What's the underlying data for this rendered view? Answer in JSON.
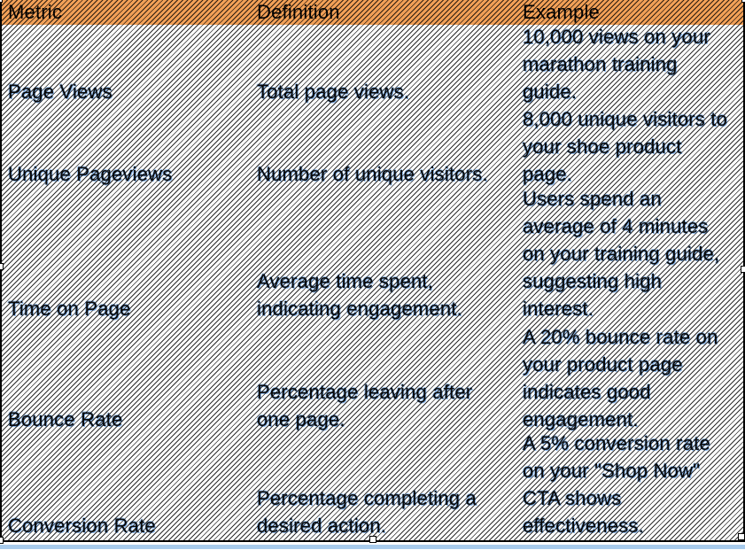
{
  "table": {
    "header": {
      "cols": [
        "Metric",
        "Definition",
        "Example"
      ]
    },
    "rows": [
      {
        "metric": "Page Views",
        "definition": "Total page views.",
        "example": "10,000 views on your\nmarathon training\nguide."
      },
      {
        "metric": "Unique Pageviews",
        "definition": "Number of unique visitors.",
        "example": "8,000 unique visitors to\nyour shoe product\npage."
      },
      {
        "metric": "Time on Page",
        "definition": "Average time spent,\nindicating engagement.",
        "example": "Users spend an\naverage of 4 minutes\non your training guide,\nsuggesting high\ninterest."
      },
      {
        "metric": "Bounce Rate",
        "definition": "Percentage leaving after\none page.",
        "example": "A 20% bounce rate on\nyour product page\nindicates good\nengagement."
      },
      {
        "metric": "Conversion Rate",
        "definition": "Percentage completing a\ndesired action.",
        "example": "A 5% conversion rate\non your \"Shop Now\"\nCTA shows\neffectiveness."
      }
    ]
  },
  "colors": {
    "header_bg": "#F2A057",
    "hatch_line": "#000000",
    "text_halo_blue": "#8AB6EA",
    "selection_bar_blue": "#A8CBEC",
    "border": "#000000"
  },
  "selection": {
    "state": "table-object-selected",
    "handles": [
      "top-left",
      "top-right",
      "left-middle",
      "right-middle",
      "bottom-left",
      "bottom-middle",
      "bottom-right"
    ]
  }
}
